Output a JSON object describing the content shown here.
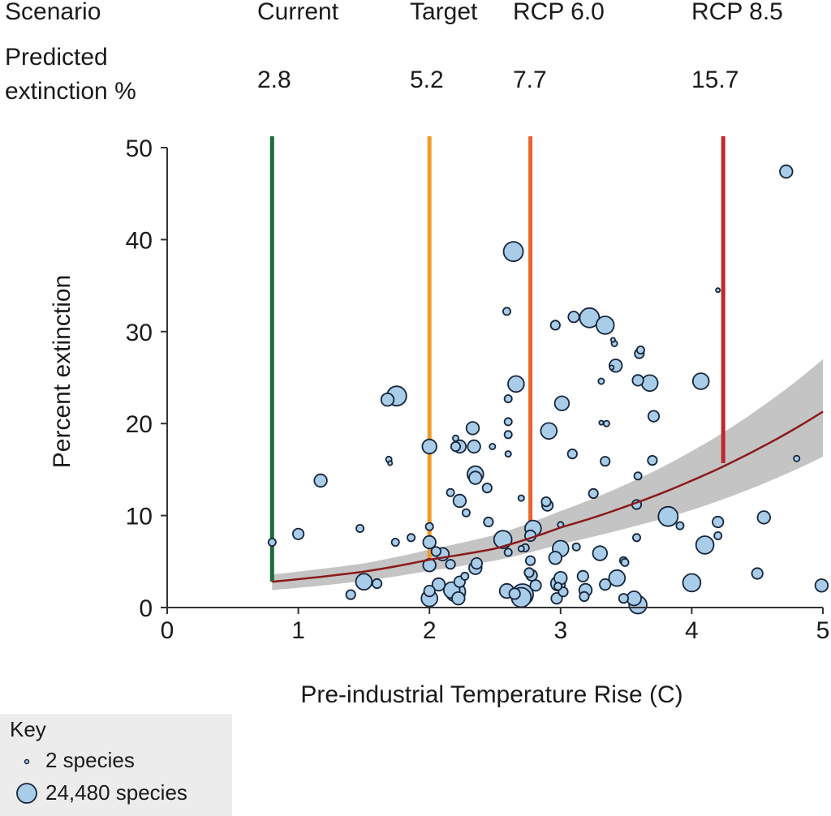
{
  "header": {
    "scenario_label": "Scenario",
    "predicted_label_line1": "Predicted",
    "predicted_label_line2": "extinction %"
  },
  "chart_data": {
    "type": "scatter",
    "xlabel": "Pre-industrial Temperature Rise (C)",
    "ylabel": "Percent extinction",
    "xlim": [
      0,
      5
    ],
    "ylim": [
      0,
      50
    ],
    "xticks": [
      "0",
      "1",
      "2",
      "3",
      "4",
      "5"
    ],
    "yticks": [
      "0",
      "10",
      "20",
      "30",
      "40",
      "50"
    ],
    "grid": false,
    "colors": {
      "bubble_fill": "#a9cce9",
      "bubble_stroke": "#14253a",
      "curve": "#8b1a1a",
      "band": "#c4c4c4"
    },
    "scenarios": [
      {
        "name": "Current",
        "value_label": "2.8",
        "x": 0.8,
        "y": 2.8,
        "color": "#1e6b3a"
      },
      {
        "name": "Target",
        "value_label": "5.2",
        "x": 2.0,
        "y": 5.2,
        "color": "#f39a2b"
      },
      {
        "name": "RCP 6.0",
        "value_label": "7.7",
        "x": 2.77,
        "y": 7.7,
        "color": "#e8642e"
      },
      {
        "name": "RCP 8.5",
        "value_label": "15.7",
        "x": 4.24,
        "y": 15.7,
        "color": "#c0272d"
      }
    ],
    "fit": {
      "x": [
        0.8,
        1.5,
        2,
        2.5,
        3,
        3.5,
        4,
        4.5,
        5
      ],
      "mean": [
        2.8,
        3.9,
        5.2,
        6.4,
        8.7,
        11.0,
        13.8,
        17.2,
        21.3
      ],
      "upper": [
        3.6,
        4.8,
        6.3,
        7.9,
        10.5,
        13.4,
        17.0,
        21.5,
        27.0
      ],
      "lower": [
        1.9,
        2.9,
        4.0,
        5.1,
        6.9,
        8.6,
        10.6,
        13.2,
        16.4
      ]
    },
    "points": [
      [
        0.8,
        7.1,
        1200
      ],
      [
        1.0,
        8.0,
        4800
      ],
      [
        1.17,
        13.8,
        7600
      ],
      [
        1.47,
        8.6,
        1200
      ],
      [
        1.4,
        1.4,
        2700
      ],
      [
        1.5,
        2.8,
        14800
      ],
      [
        1.6,
        2.6,
        2700
      ],
      [
        1.68,
        22.6,
        7600
      ],
      [
        1.75,
        23.0,
        24480
      ],
      [
        1.69,
        16.1,
        300
      ],
      [
        1.7,
        15.7,
        2
      ],
      [
        1.74,
        7.1,
        1200
      ],
      [
        1.86,
        7.6,
        1200
      ],
      [
        2.0,
        17.5,
        10900
      ],
      [
        2.0,
        8.8,
        1200
      ],
      [
        2.0,
        7.1,
        7600
      ],
      [
        2.0,
        4.6,
        7600
      ],
      [
        2.05,
        6.1,
        2700
      ],
      [
        2.1,
        5.8,
        7600
      ],
      [
        2.0,
        1.8,
        4800
      ],
      [
        2.0,
        1.0,
        14800
      ],
      [
        2.07,
        2.5,
        7600
      ],
      [
        2.17,
        1.9,
        14800
      ],
      [
        2.2,
        1.7,
        24480
      ],
      [
        2.22,
        1.0,
        7600
      ],
      [
        2.23,
        2.8,
        4800
      ],
      [
        2.27,
        3.4,
        1200
      ],
      [
        2.16,
        4.7,
        2700
      ],
      [
        2.35,
        4.3,
        7600
      ],
      [
        2.36,
        4.8,
        4800
      ],
      [
        2.16,
        12.5,
        1200
      ],
      [
        2.23,
        11.6,
        7600
      ],
      [
        2.2,
        18.4,
        300
      ],
      [
        2.2,
        17.5,
        2700
      ],
      [
        2.23,
        17.5,
        7600
      ],
      [
        2.33,
        19.5,
        7600
      ],
      [
        2.34,
        17.5,
        7600
      ],
      [
        2.35,
        14.5,
        14800
      ],
      [
        2.35,
        14.1,
        7600
      ],
      [
        2.28,
        10.3,
        1200
      ],
      [
        2.44,
        13.0,
        2700
      ],
      [
        2.45,
        9.3,
        2700
      ],
      [
        2.48,
        17.5,
        300
      ],
      [
        2.56,
        7.4,
        19300
      ],
      [
        2.59,
        32.2,
        1200
      ],
      [
        2.6,
        22.7,
        1200
      ],
      [
        2.6,
        20.2,
        1200
      ],
      [
        2.6,
        18.8,
        1200
      ],
      [
        2.6,
        16.7,
        300
      ],
      [
        2.6,
        6.0,
        1200
      ],
      [
        2.64,
        38.7,
        24480
      ],
      [
        2.66,
        24.3,
        14800
      ],
      [
        2.59,
        1.8,
        10900
      ],
      [
        2.65,
        1.5,
        4800
      ],
      [
        2.71,
        1.4,
        30200
      ],
      [
        2.7,
        1.1,
        24480
      ],
      [
        2.7,
        11.9,
        300
      ],
      [
        2.7,
        6.4,
        300
      ],
      [
        2.73,
        6.5,
        1200
      ],
      [
        2.77,
        7.8,
        4800
      ],
      [
        2.79,
        8.6,
        14800
      ],
      [
        2.76,
        3.8,
        2700
      ],
      [
        2.77,
        5.1,
        2700
      ],
      [
        2.81,
        2.4,
        4800
      ],
      [
        2.78,
        3.5,
        4800
      ],
      [
        2.91,
        19.2,
        14800
      ],
      [
        2.89,
        11.5,
        2700
      ],
      [
        2.9,
        11.1,
        4800
      ],
      [
        2.96,
        30.7,
        2700
      ],
      [
        3.01,
        22.2,
        10900
      ],
      [
        2.98,
        2.6,
        10900
      ],
      [
        2.96,
        5.4,
        7600
      ],
      [
        3.0,
        6.4,
        14800
      ],
      [
        3.0,
        3.2,
        7600
      ],
      [
        2.98,
        2.3,
        1200
      ],
      [
        2.97,
        1.0,
        4800
      ],
      [
        3.02,
        1.7,
        2700
      ],
      [
        3.0,
        9.0,
        300
      ],
      [
        3.09,
        16.7,
        2700
      ],
      [
        3.12,
        6.6,
        1200
      ],
      [
        3.1,
        31.6,
        4800
      ],
      [
        3.22,
        31.5,
        24480
      ],
      [
        3.34,
        30.7,
        19300
      ],
      [
        3.17,
        3.4,
        4800
      ],
      [
        3.18,
        1.2,
        2700
      ],
      [
        3.19,
        1.9,
        7600
      ],
      [
        3.25,
        12.4,
        2700
      ],
      [
        3.3,
        5.9,
        10900
      ],
      [
        3.31,
        24.6,
        300
      ],
      [
        3.31,
        20.1,
        2
      ],
      [
        3.35,
        20.0,
        300
      ],
      [
        3.34,
        15.9,
        2700
      ],
      [
        3.4,
        29.1,
        2
      ],
      [
        3.41,
        28.7,
        300
      ],
      [
        3.39,
        26.1,
        2
      ],
      [
        3.42,
        26.3,
        7600
      ],
      [
        3.43,
        3.2,
        14800
      ],
      [
        3.34,
        2.5,
        4800
      ],
      [
        3.48,
        1.0,
        2700
      ],
      [
        3.48,
        5.1,
        1200
      ],
      [
        3.49,
        4.9,
        1200
      ],
      [
        3.59,
        24.7,
        4800
      ],
      [
        3.6,
        27.6,
        2700
      ],
      [
        3.61,
        28.0,
        1200
      ],
      [
        3.68,
        24.4,
        14800
      ],
      [
        3.71,
        20.8,
        4800
      ],
      [
        3.7,
        16.0,
        2700
      ],
      [
        3.59,
        14.3,
        1200
      ],
      [
        3.58,
        11.2,
        2700
      ],
      [
        3.58,
        7.6,
        1200
      ],
      [
        3.56,
        1.0,
        10900
      ],
      [
        3.59,
        0.3,
        19300
      ],
      [
        3.82,
        9.9,
        24480
      ],
      [
        3.91,
        8.9,
        1200
      ],
      [
        4.0,
        2.7,
        19300
      ],
      [
        4.07,
        24.6,
        14800
      ],
      [
        4.1,
        6.8,
        19300
      ],
      [
        4.2,
        34.5,
        2
      ],
      [
        4.2,
        9.3,
        4800
      ],
      [
        4.2,
        7.8,
        1200
      ],
      [
        4.55,
        9.8,
        7600
      ],
      [
        4.5,
        3.7,
        4800
      ],
      [
        4.72,
        47.4,
        7600
      ],
      [
        4.8,
        16.2,
        300
      ],
      [
        4.99,
        2.4,
        7600
      ]
    ],
    "key": {
      "title": "Key",
      "small_label": "2 species",
      "small_value": 2,
      "large_label": "24,480 species",
      "large_value": 24480
    }
  }
}
